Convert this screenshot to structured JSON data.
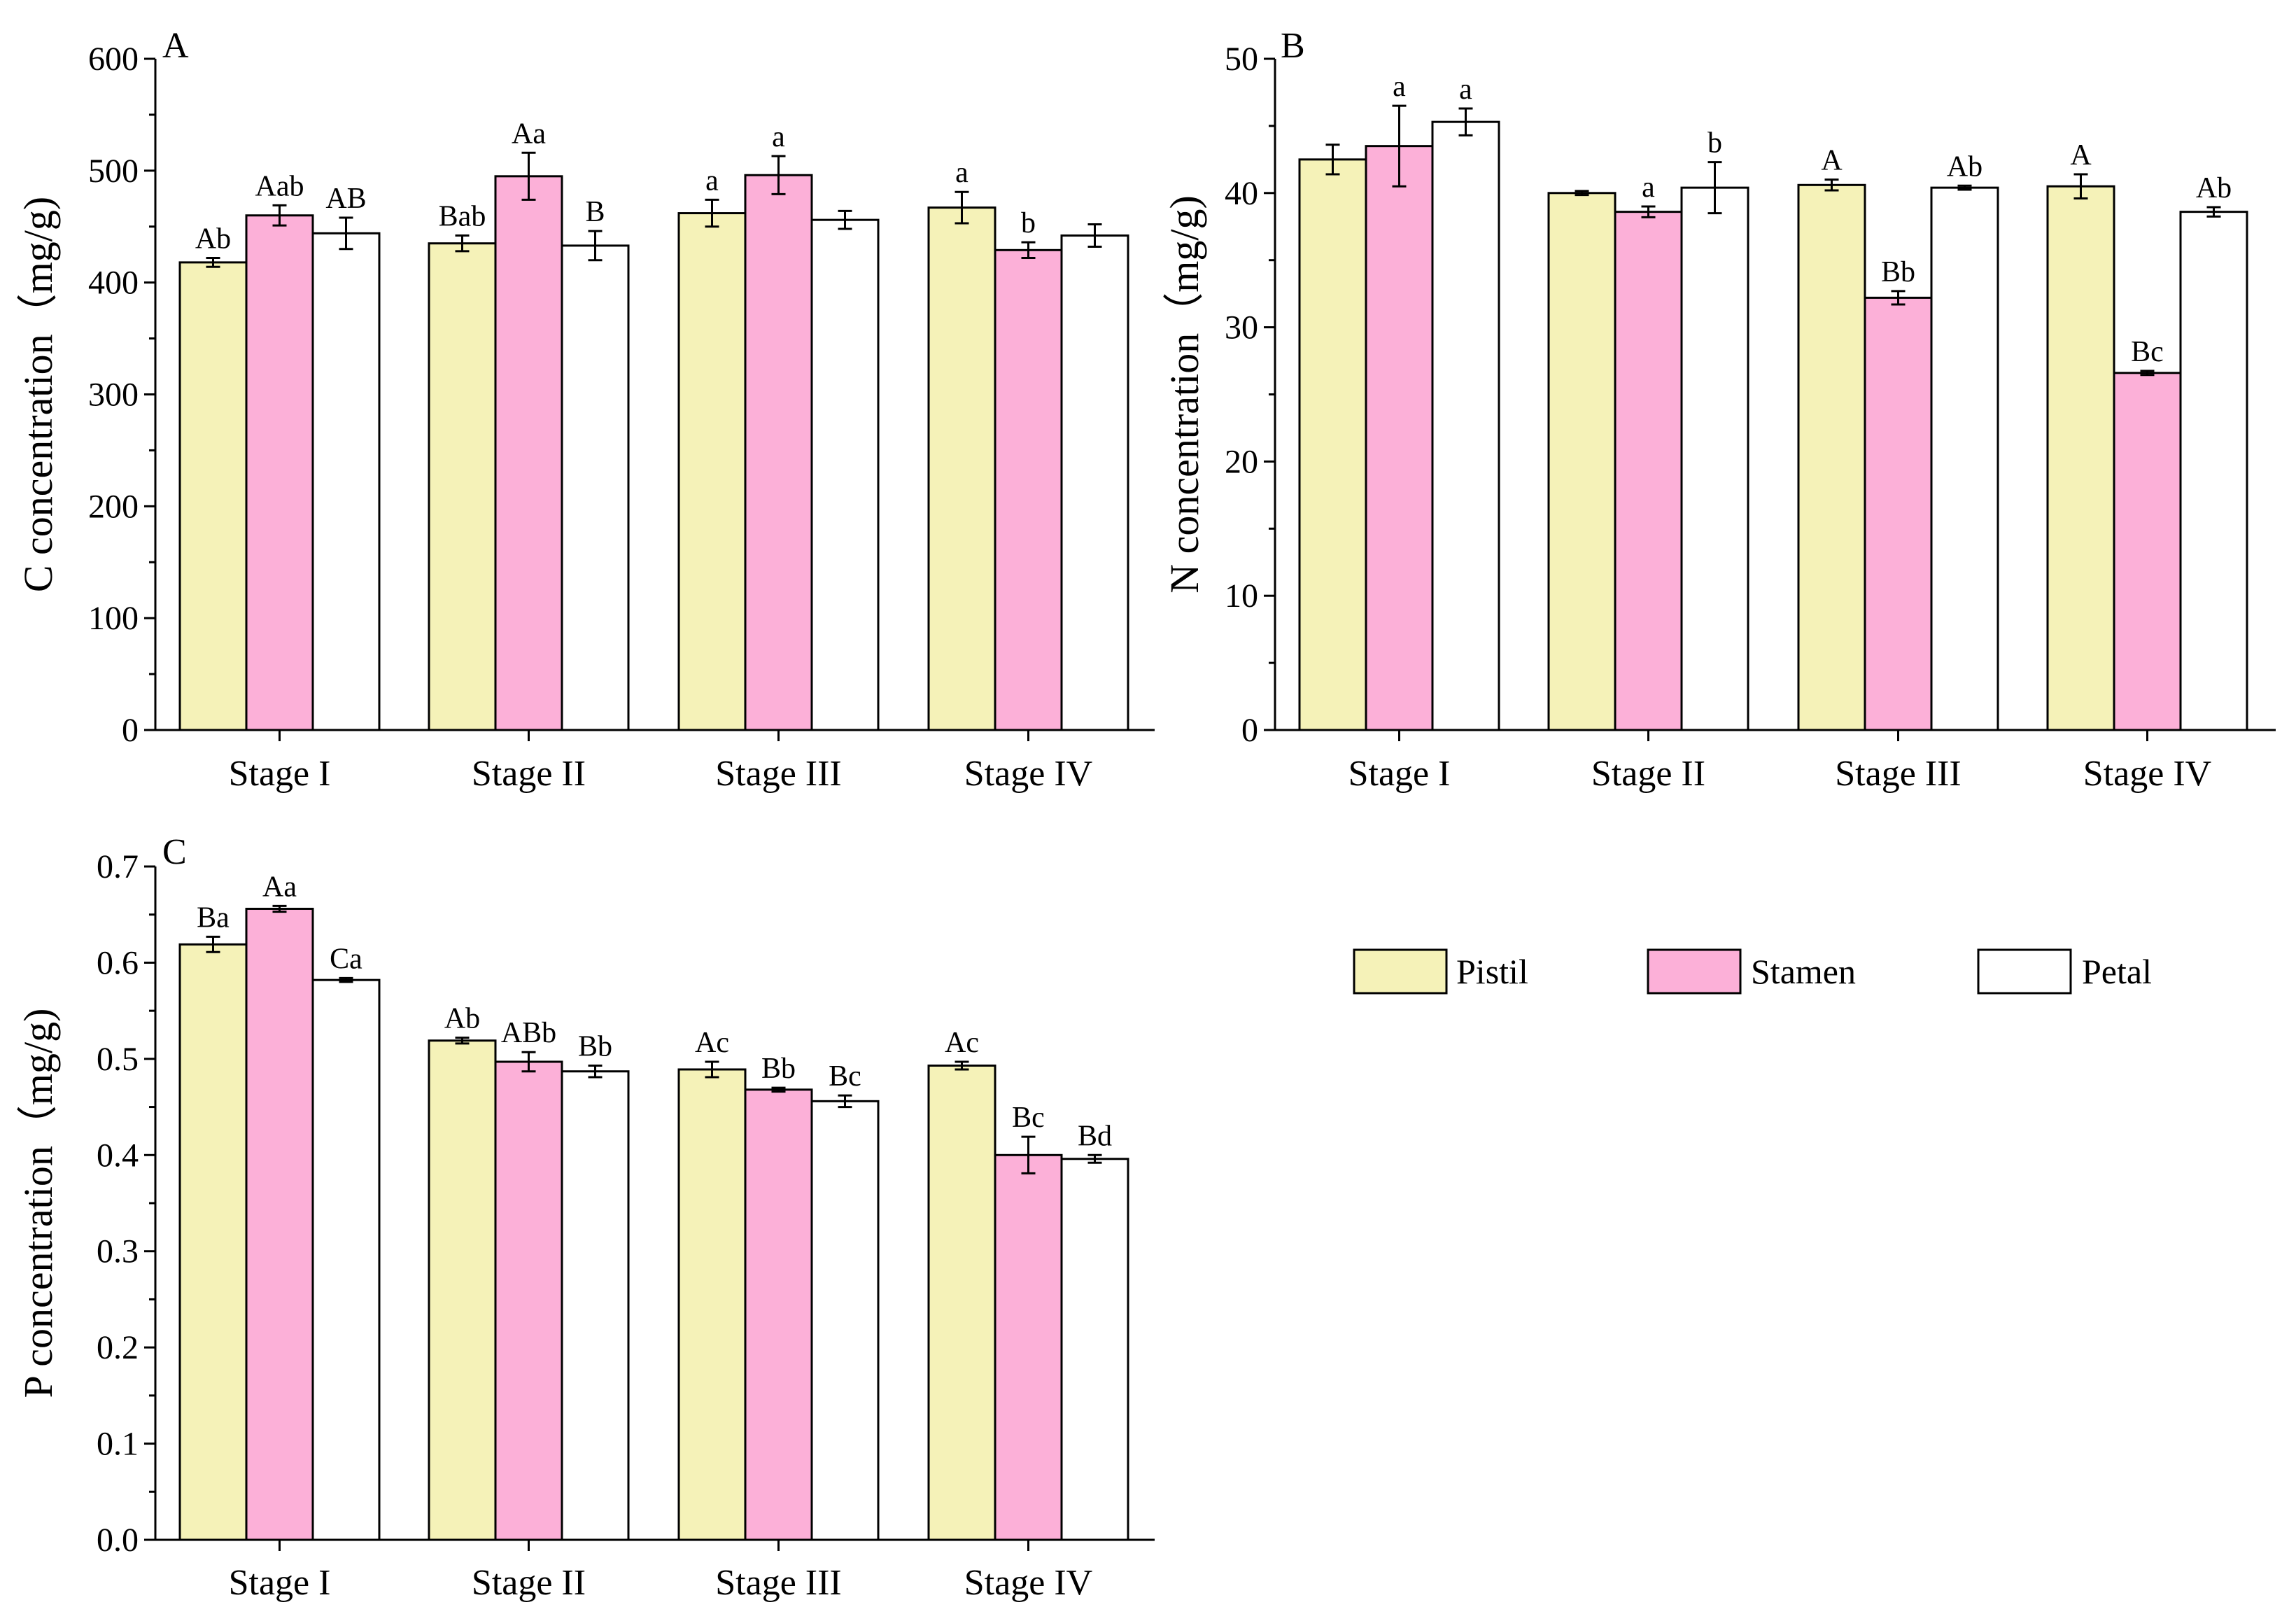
{
  "colors": {
    "Pistil": "#f5f2b8",
    "Stamen": "#fcb0d8",
    "Petal": "#ffffff",
    "stroke": "#000000"
  },
  "legend": {
    "placement": "right-middle",
    "items": [
      {
        "name": "Pistil",
        "color": "#f5f2b8"
      },
      {
        "name": "Stamen",
        "color": "#fcb0d8"
      },
      {
        "name": "Petal",
        "color": "#ffffff"
      }
    ]
  },
  "chart_data": [
    {
      "panel": "A",
      "type": "bar",
      "ylabel": "C concentration（mg/g)",
      "xlabel": "",
      "categories": [
        "Stage I",
        "Stage II",
        "Stage III",
        "Stage IV"
      ],
      "ylim": [
        0,
        600
      ],
      "yticks": [
        0,
        100,
        200,
        300,
        400,
        500,
        600
      ],
      "ytick_labels": [
        "0",
        "100",
        "200",
        "300",
        "400",
        "500",
        "600"
      ],
      "grid": false,
      "series": [
        {
          "name": "Pistil",
          "values": [
            418,
            435,
            462,
            467
          ],
          "errors": [
            4,
            7,
            12,
            14
          ],
          "labels": [
            "Ab",
            "Bab",
            "a",
            "a"
          ]
        },
        {
          "name": "Stamen",
          "values": [
            460,
            495,
            496,
            429
          ],
          "errors": [
            9,
            21,
            17,
            7
          ],
          "labels": [
            "Aab",
            "Aa",
            "a",
            "b"
          ]
        },
        {
          "name": "Petal",
          "values": [
            444,
            433,
            456,
            442
          ],
          "errors": [
            14,
            13,
            8,
            10
          ],
          "labels": [
            "AB",
            "B",
            "",
            ""
          ]
        }
      ]
    },
    {
      "panel": "B",
      "type": "bar",
      "ylabel": "N concentration（mg/g)",
      "xlabel": "",
      "categories": [
        "Stage I",
        "Stage II",
        "Stage III",
        "Stage IV"
      ],
      "ylim": [
        0,
        50
      ],
      "yticks": [
        0,
        10,
        20,
        30,
        40,
        50
      ],
      "ytick_labels": [
        "0",
        "10",
        "20",
        "30",
        "40",
        "50"
      ],
      "grid": false,
      "series": [
        {
          "name": "Pistil",
          "values": [
            42.5,
            40.0,
            40.6,
            40.5
          ],
          "errors": [
            1.1,
            0.15,
            0.4,
            0.9
          ],
          "labels": [
            "",
            "",
            "A",
            "A"
          ]
        },
        {
          "name": "Stamen",
          "values": [
            43.5,
            38.6,
            32.2,
            26.6
          ],
          "errors": [
            3.0,
            0.4,
            0.5,
            0.15
          ],
          "labels": [
            "a",
            "a",
            "Bb",
            "Bc"
          ]
        },
        {
          "name": "Petal",
          "values": [
            45.3,
            40.4,
            40.4,
            38.6
          ],
          "errors": [
            1.0,
            1.9,
            0.15,
            0.35
          ],
          "labels": [
            "a",
            "b",
            "Ab",
            "Ab"
          ]
        }
      ]
    },
    {
      "panel": "C",
      "type": "bar",
      "ylabel": "P concentration（mg/g)",
      "xlabel": "",
      "categories": [
        "Stage I",
        "Stage II",
        "Stage III",
        "Stage IV"
      ],
      "ylim": [
        0,
        0.7
      ],
      "yticks": [
        0,
        0.1,
        0.2,
        0.3,
        0.4,
        0.5,
        0.6,
        0.7
      ],
      "ytick_labels": [
        "0.0",
        "0.1",
        "0.2",
        "0.3",
        "0.4",
        "0.5",
        "0.6",
        "0.7"
      ],
      "grid": false,
      "series": [
        {
          "name": "Pistil",
          "values": [
            0.619,
            0.519,
            0.489,
            0.493
          ],
          "errors": [
            0.008,
            0.003,
            0.008,
            0.004
          ],
          "labels": [
            "Ba",
            "Ab",
            "Ac",
            "Ac"
          ]
        },
        {
          "name": "Stamen",
          "values": [
            0.656,
            0.497,
            0.468,
            0.4
          ],
          "errors": [
            0.003,
            0.01,
            0.002,
            0.019
          ],
          "labels": [
            "Aa",
            "ABb",
            "Bb",
            "Bc"
          ]
        },
        {
          "name": "Petal",
          "values": [
            0.582,
            0.487,
            0.456,
            0.396
          ],
          "errors": [
            0.002,
            0.006,
            0.006,
            0.004
          ],
          "labels": [
            "Ca",
            "Bb",
            "Bc",
            "Bd"
          ]
        }
      ]
    }
  ]
}
